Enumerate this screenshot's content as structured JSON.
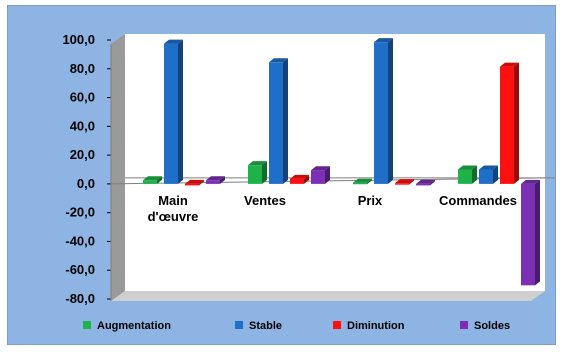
{
  "chart_data": {
    "type": "bar",
    "categories": [
      "Main d'œuvre",
      "Ventes",
      "Prix",
      "Commandes"
    ],
    "category_lines": [
      [
        "Main",
        "d'œuvre"
      ],
      [
        "Ventes"
      ],
      [
        "Prix"
      ],
      [
        "Commandes"
      ]
    ],
    "series": [
      {
        "name": "Augmentation",
        "color": "#1fb24a",
        "values": [
          2.5,
          13.0,
          0.8,
          10.0
        ]
      },
      {
        "name": "Stable",
        "color": "#1f6fc9",
        "values": [
          97.5,
          84.5,
          98.5,
          10.0
        ]
      },
      {
        "name": "Diminution",
        "color": "#ff1010",
        "values": [
          0.0,
          3.5,
          0.5,
          81.5
        ]
      },
      {
        "name": "Soldes",
        "color": "#7a2fb5",
        "values": [
          2.5,
          9.5,
          0.0,
          -70.5
        ]
      }
    ],
    "ylim": [
      -80,
      100
    ],
    "yticks": [
      "100,0",
      "80,0",
      "60,0",
      "40,0",
      "20,0",
      "0,0",
      "-20,0",
      "-40,0",
      "-60,0",
      "-80,0"
    ],
    "ytick_values": [
      100,
      80,
      60,
      40,
      20,
      0,
      -20,
      -40,
      -60,
      -80
    ],
    "legend_position": "bottom",
    "grid": false
  }
}
